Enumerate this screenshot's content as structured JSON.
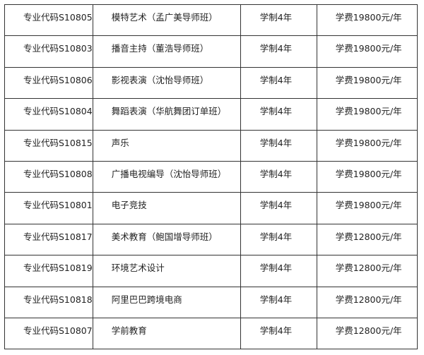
{
  "rows": [
    {
      "code": "专业代码S10805",
      "major": "模特艺术（孟广美导师班）",
      "duration": "学制4年",
      "fee": "学费19800元/年"
    },
    {
      "code": "专业代码S10803",
      "major": "播音主持（董浩导师班）",
      "duration": "学制4年",
      "fee": "学费19800元/年"
    },
    {
      "code": "专业代码S10806",
      "major": "影视表演（沈怡导师班）",
      "duration": "学制4年",
      "fee": "学费19800元/年"
    },
    {
      "code": "专业代码S10804",
      "major": "舞蹈表演（华航舞团订单班）",
      "duration": "学制4年",
      "fee": "学费19800元/年"
    },
    {
      "code": "专业代码S10815",
      "major": "声乐",
      "duration": "学制4年",
      "fee": "学费19800元/年"
    },
    {
      "code": "专业代码S10808",
      "major": "广播电视编导（沈怡导师班）",
      "duration": "学制4年",
      "fee": "学费19800元/年"
    },
    {
      "code": "专业代码S10801",
      "major": "电子竞技",
      "duration": "学制4年",
      "fee": "学费19800元/年"
    },
    {
      "code": "专业代码S10817",
      "major": "美术教育（鲍国增导师班）",
      "duration": "学制4年",
      "fee": "学费12800元/年"
    },
    {
      "code": "专业代码S10819",
      "major": "环境艺术设计",
      "duration": "学制4年",
      "fee": "学费12800元/年"
    },
    {
      "code": "专业代码S10818",
      "major": "阿里巴巴跨境电商",
      "duration": "学制4年",
      "fee": "学费12800元/年"
    },
    {
      "code": "专业代码S10807",
      "major": "学前教育",
      "duration": "学制4年",
      "fee": "学费12800元/年"
    }
  ]
}
